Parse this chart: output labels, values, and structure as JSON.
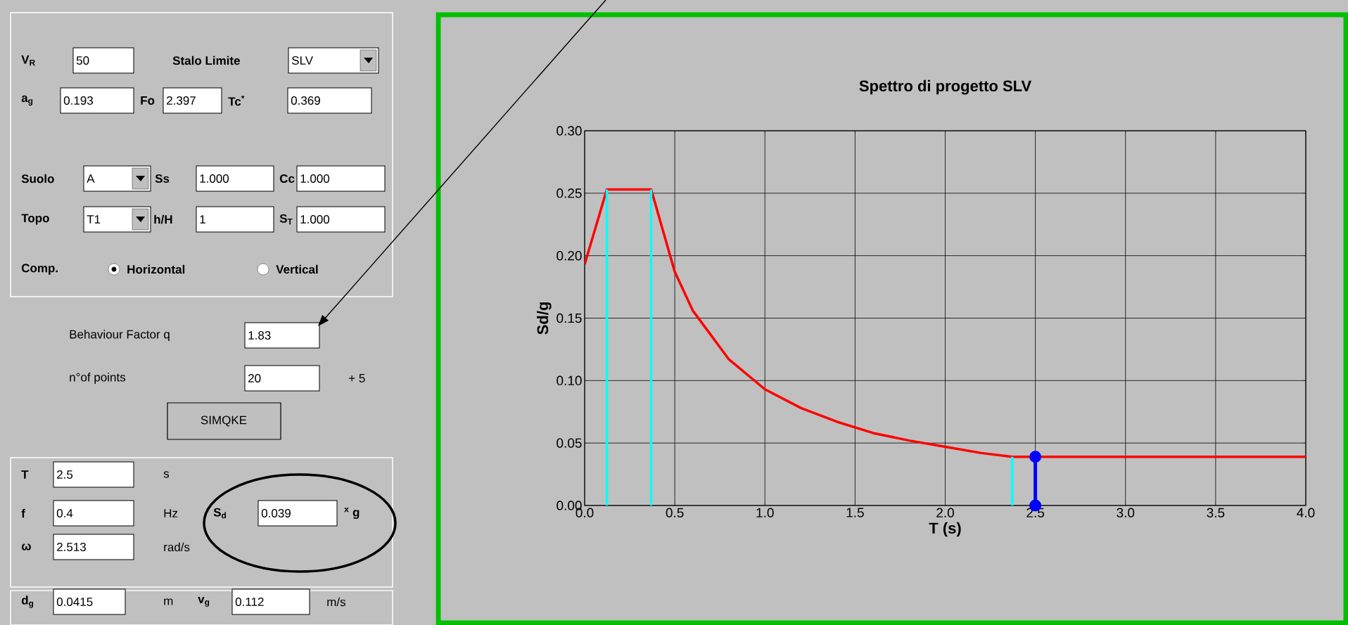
{
  "chart_data": [
    {
      "type": "other",
      "annotations": [
        "V$_{R}$",
        "50",
        "Stalo Limite",
        "SLV",
        "a$_{g}$",
        "0.193",
        "Fo",
        "2.397",
        "Tc$^{*}$",
        "0.369",
        "Suolo",
        "A",
        "Ss",
        "1.000",
        "Cc",
        "1.000",
        "Topo",
        "T1",
        "h/H",
        "1",
        "S$_{T}$",
        "1.000",
        "Comp.",
        "Horizontal",
        "Vertical",
        "Behaviour Factor q",
        "1.83",
        "n°of points",
        "20",
        "+ 5",
        "SIMQKE",
        "T",
        "2.5",
        "s",
        "f",
        "0.4",
        "Hz",
        "S$_{d}$",
        "0.039",
        "$^{x}$ g",
        "ω",
        "2.513",
        "rad/s",
        "d$_{g}$",
        "0.0415",
        "m",
        "v$_{g}$",
        "0.112",
        "m/s"
      ]
    },
    {
      "type": "line",
      "title": "Spettro di progetto SLV",
      "xlabel": "T (s)",
      "ylabel": "Sd/g",
      "xlim": [
        0,
        4
      ],
      "ylim": [
        0,
        0.3
      ],
      "xticks": [
        {
          "value": 0,
          "label": "0.0"
        },
        {
          "value": 0.5,
          "label": "0.5"
        },
        {
          "value": 1,
          "label": "1.0"
        },
        {
          "value": 1.5,
          "label": "1.5"
        },
        {
          "value": 2,
          "label": "2.0"
        },
        {
          "value": 2.5,
          "label": "2.5"
        },
        {
          "value": 3,
          "label": "3.0"
        },
        {
          "value": 3.5,
          "label": "3.5"
        },
        {
          "value": 4,
          "label": "4.0"
        }
      ],
      "yticks": [
        {
          "value": 0,
          "label": "0.00"
        },
        {
          "value": 0.05,
          "label": "0.05"
        },
        {
          "value": 0.1,
          "label": "0.10"
        },
        {
          "value": 0.15,
          "label": "0.15"
        },
        {
          "value": 0.2,
          "label": "0.20"
        },
        {
          "value": 0.25,
          "label": "0.25"
        },
        {
          "value": 0.3,
          "label": "0.30"
        }
      ],
      "grid": true,
      "series": [
        {
          "color": "#ff0000",
          "x": [
            0,
            0.123,
            0.369,
            0.5,
            0.6,
            0.8,
            1.0,
            1.2,
            1.4,
            1.6,
            1.8,
            2.0,
            2.2,
            2.372,
            3.0,
            3.5,
            4.0
          ],
          "values": [
            0.193,
            0.253,
            0.253,
            0.187,
            0.156,
            0.117,
            0.093,
            0.078,
            0.067,
            0.058,
            0.052,
            0.047,
            0.042,
            0.039,
            0.039,
            0.039,
            0.039
          ]
        },
        {
          "color": "#00ffff",
          "x": [
            0.123,
            0.123
          ],
          "values": [
            0,
            0.253
          ]
        },
        {
          "color": "#00ffff",
          "x": [
            0.369,
            0.369
          ],
          "values": [
            0,
            0.253
          ]
        },
        {
          "color": "#00ffff",
          "x": [
            2.372,
            2.372
          ],
          "values": [
            0,
            0.039
          ]
        },
        {
          "color": "#0000ff",
          "marker": "circle",
          "x": [
            2.5,
            2.5
          ],
          "values": [
            0,
            0.039
          ]
        }
      ]
    }
  ]
}
